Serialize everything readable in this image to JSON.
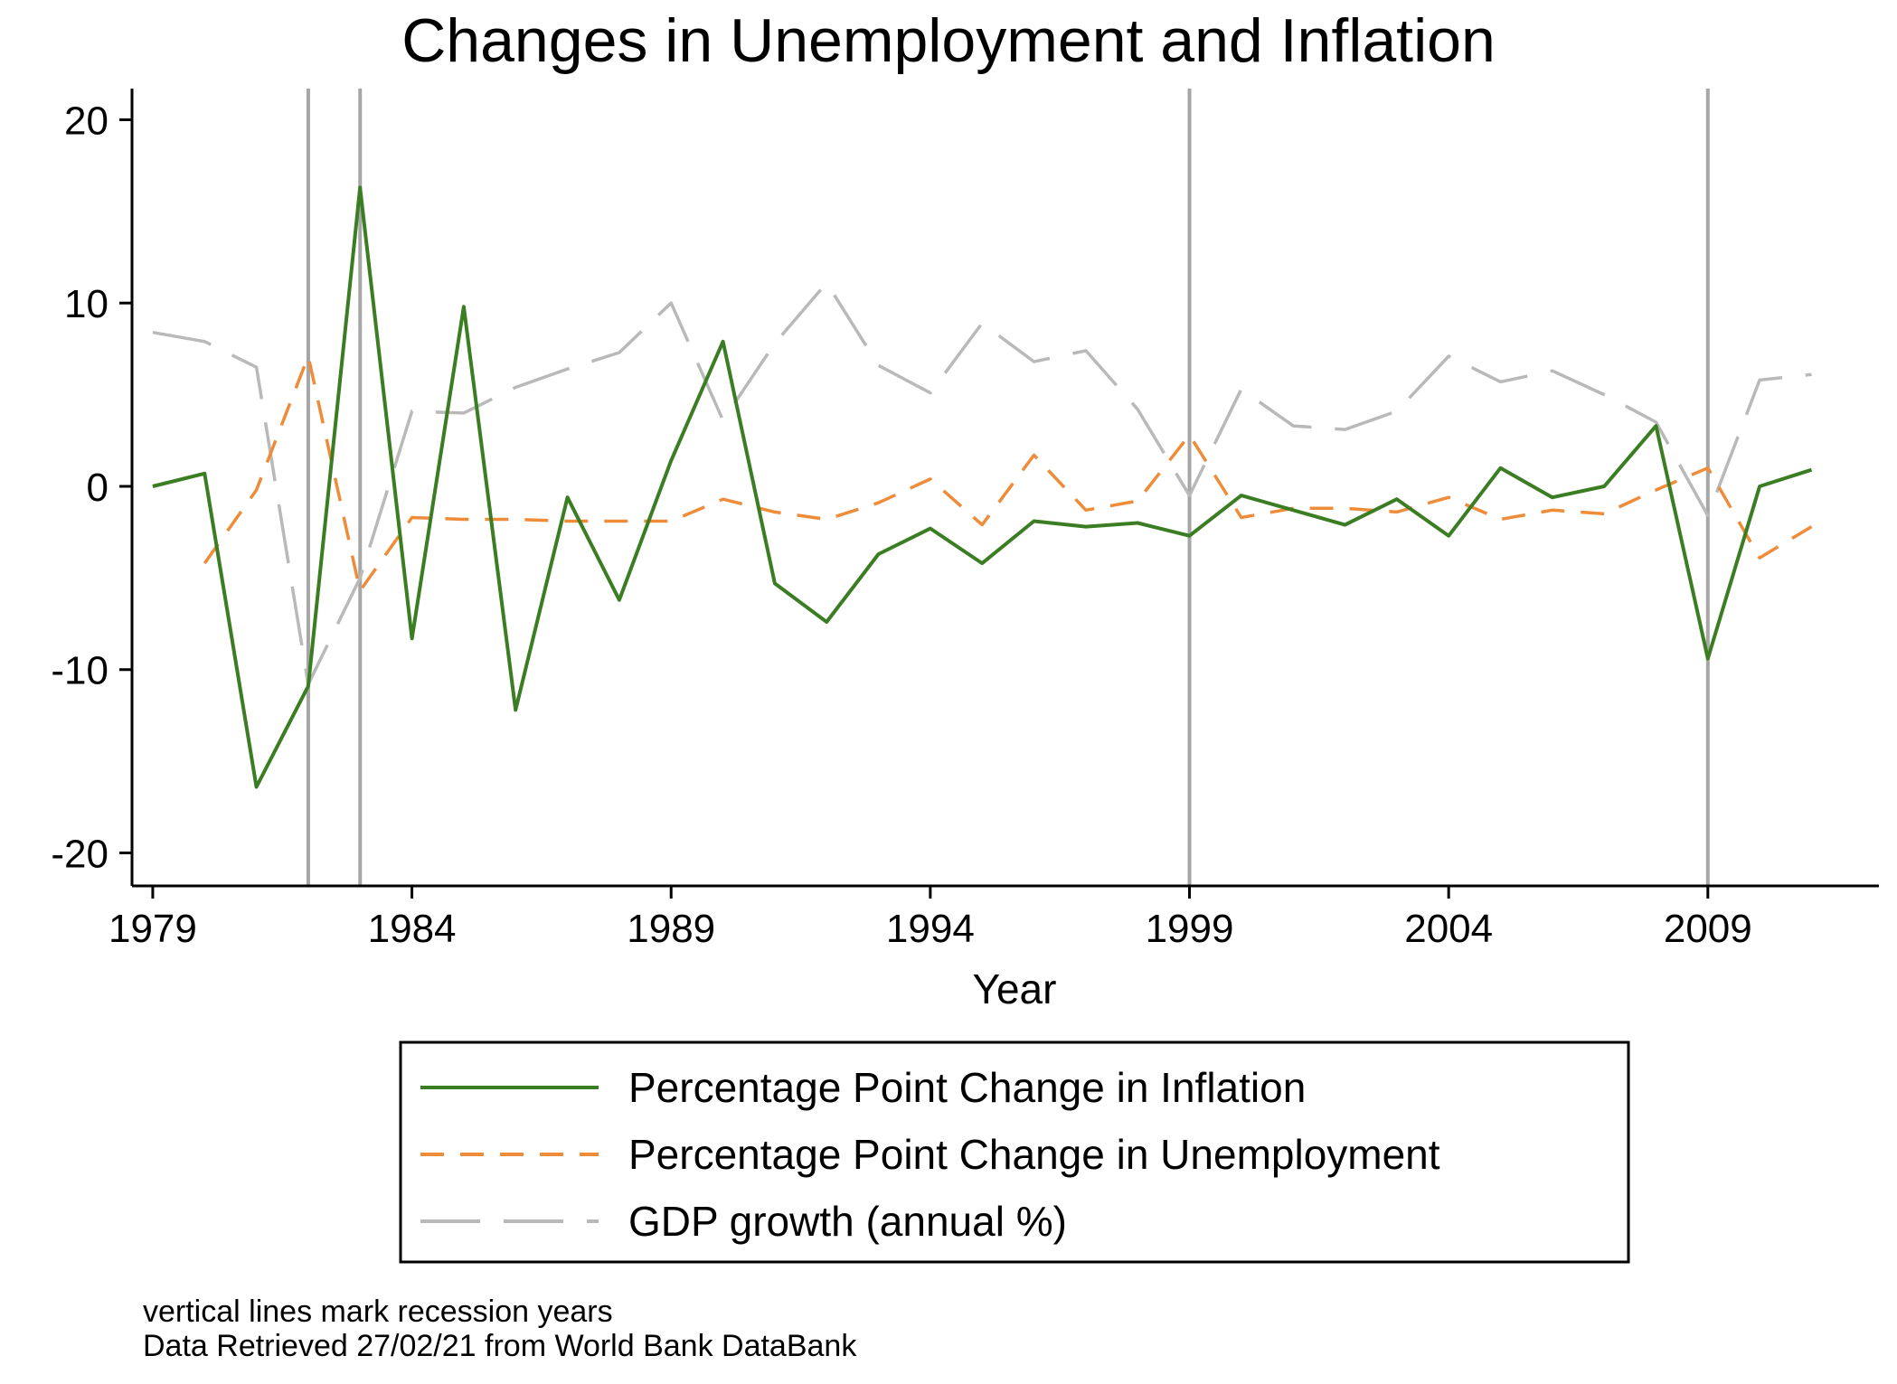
{
  "chart_data": {
    "type": "line",
    "title": "Changes in Unemployment and Inflation",
    "xlabel": "Year",
    "ylabel": "",
    "xlim": [
      1978.6,
      2012.3
    ],
    "ylim": [
      -21.8,
      21.7
    ],
    "x_ticks": [
      1979,
      1984,
      1989,
      1994,
      1999,
      2004,
      2009
    ],
    "y_ticks": [
      20,
      10,
      0,
      -10,
      -20
    ],
    "grid": false,
    "legend_position": "bottom",
    "recession_years": [
      1982,
      1983,
      1999,
      2009
    ],
    "notes": [
      "vertical lines mark recession years",
      "Data Retrieved 27/02/21 from World Bank DataBank"
    ],
    "series": [
      {
        "name": "Percentage Point Change in Inflation",
        "color": "#3a7d22",
        "style": "solid",
        "points": [
          [
            1979,
            0.0
          ],
          [
            1980,
            0.7
          ],
          [
            1981,
            -16.4
          ],
          [
            1982,
            -10.9
          ],
          [
            1983,
            16.3
          ],
          [
            1984,
            -8.3
          ],
          [
            1985,
            9.8
          ],
          [
            1986,
            -12.2
          ],
          [
            1987,
            -0.6
          ],
          [
            1988,
            -6.2
          ],
          [
            1989,
            1.4
          ],
          [
            1990,
            7.9
          ],
          [
            1991,
            -5.3
          ],
          [
            1992,
            -7.4
          ],
          [
            1993,
            -3.7
          ],
          [
            1994,
            -2.3
          ],
          [
            1995,
            -4.2
          ],
          [
            1996,
            -1.9
          ],
          [
            1997,
            -2.2
          ],
          [
            1998,
            -2.0
          ],
          [
            1999,
            -2.7
          ],
          [
            2000,
            -0.5
          ],
          [
            2001,
            -1.3
          ],
          [
            2002,
            -2.1
          ],
          [
            2003,
            -0.7
          ],
          [
            2004,
            -2.7
          ],
          [
            2005,
            1.0
          ],
          [
            2006,
            -0.6
          ],
          [
            2007,
            0.0
          ],
          [
            2008,
            3.3
          ],
          [
            2009,
            -9.4
          ],
          [
            2010,
            0.0
          ],
          [
            2011,
            0.9
          ]
        ]
      },
      {
        "name": "Percentage Point Change in Unemployment",
        "color": "#ee8c3a",
        "style": "dashed",
        "points": [
          [
            1980,
            -4.2
          ],
          [
            1981,
            -0.2
          ],
          [
            1982,
            7.1
          ],
          [
            1983,
            -5.7
          ],
          [
            1984,
            -1.7
          ],
          [
            1985,
            -1.8
          ],
          [
            1986,
            -1.8
          ],
          [
            1987,
            -1.9
          ],
          [
            1988,
            -1.9
          ],
          [
            1989,
            -1.9
          ],
          [
            1990,
            -0.7
          ],
          [
            1991,
            -1.4
          ],
          [
            1992,
            -1.8
          ],
          [
            1993,
            -0.9
          ],
          [
            1994,
            0.4
          ],
          [
            1995,
            -2.1
          ],
          [
            1996,
            1.7
          ],
          [
            1997,
            -1.3
          ],
          [
            1998,
            -0.8
          ],
          [
            1999,
            2.8
          ],
          [
            2000,
            -1.7
          ],
          [
            2001,
            -1.2
          ],
          [
            2002,
            -1.2
          ],
          [
            2003,
            -1.4
          ],
          [
            2004,
            -0.6
          ],
          [
            2005,
            -1.8
          ],
          [
            2006,
            -1.3
          ],
          [
            2007,
            -1.5
          ],
          [
            2008,
            -0.2
          ],
          [
            2009,
            1.0
          ],
          [
            2010,
            -3.9
          ],
          [
            2011,
            -2.2
          ]
        ]
      },
      {
        "name": "GDP growth (annual %)",
        "color": "#b9b9b9",
        "style": "longdash",
        "points": [
          [
            1979,
            8.4
          ],
          [
            1980,
            7.9
          ],
          [
            1981,
            6.5
          ],
          [
            1982,
            -10.8
          ],
          [
            1983,
            -5.0
          ],
          [
            1984,
            4.1
          ],
          [
            1985,
            4.0
          ],
          [
            1986,
            5.4
          ],
          [
            1987,
            6.4
          ],
          [
            1988,
            7.3
          ],
          [
            1989,
            10.0
          ],
          [
            1990,
            3.6
          ],
          [
            1991,
            7.8
          ],
          [
            1992,
            11.1
          ],
          [
            1993,
            6.6
          ],
          [
            1994,
            5.1
          ],
          [
            1995,
            8.9
          ],
          [
            1996,
            6.8
          ],
          [
            1997,
            7.4
          ],
          [
            1998,
            4.2
          ],
          [
            1999,
            -0.5
          ],
          [
            2000,
            5.3
          ],
          [
            2001,
            3.3
          ],
          [
            2002,
            3.1
          ],
          [
            2003,
            4.1
          ],
          [
            2004,
            7.1
          ],
          [
            2005,
            5.7
          ],
          [
            2006,
            6.3
          ],
          [
            2007,
            5.0
          ],
          [
            2008,
            3.5
          ],
          [
            2009,
            -1.6
          ],
          [
            2010,
            5.8
          ],
          [
            2011,
            6.1
          ]
        ]
      }
    ]
  }
}
